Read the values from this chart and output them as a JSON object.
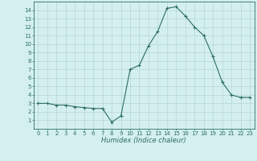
{
  "x": [
    0,
    1,
    2,
    3,
    4,
    5,
    6,
    7,
    8,
    9,
    10,
    11,
    12,
    13,
    14,
    15,
    16,
    17,
    18,
    19,
    20,
    21,
    22,
    23
  ],
  "y": [
    3.0,
    3.0,
    2.8,
    2.8,
    2.6,
    2.5,
    2.4,
    2.4,
    0.8,
    1.5,
    7.0,
    7.5,
    9.8,
    11.5,
    14.2,
    14.4,
    13.3,
    12.0,
    11.0,
    8.5,
    5.5,
    4.0,
    3.7,
    3.7
  ],
  "line_color": "#2d6e65",
  "marker": "+",
  "markersize": 3,
  "linewidth": 0.8,
  "bg_color": "#d4efef",
  "grid_color": "#b0d0d0",
  "xlabel": "Humidex (Indice chaleur)",
  "xlabel_style": "italic",
  "xlabel_fontsize": 6,
  "tick_fontsize": 5,
  "ylim": [
    0,
    15
  ],
  "xlim": [
    -0.5,
    23.5
  ],
  "yticks": [
    1,
    2,
    3,
    4,
    5,
    6,
    7,
    8,
    9,
    10,
    11,
    12,
    13,
    14
  ],
  "xticks": [
    0,
    1,
    2,
    3,
    4,
    5,
    6,
    7,
    8,
    9,
    10,
    11,
    12,
    13,
    14,
    15,
    16,
    17,
    18,
    19,
    20,
    21,
    22,
    23
  ]
}
